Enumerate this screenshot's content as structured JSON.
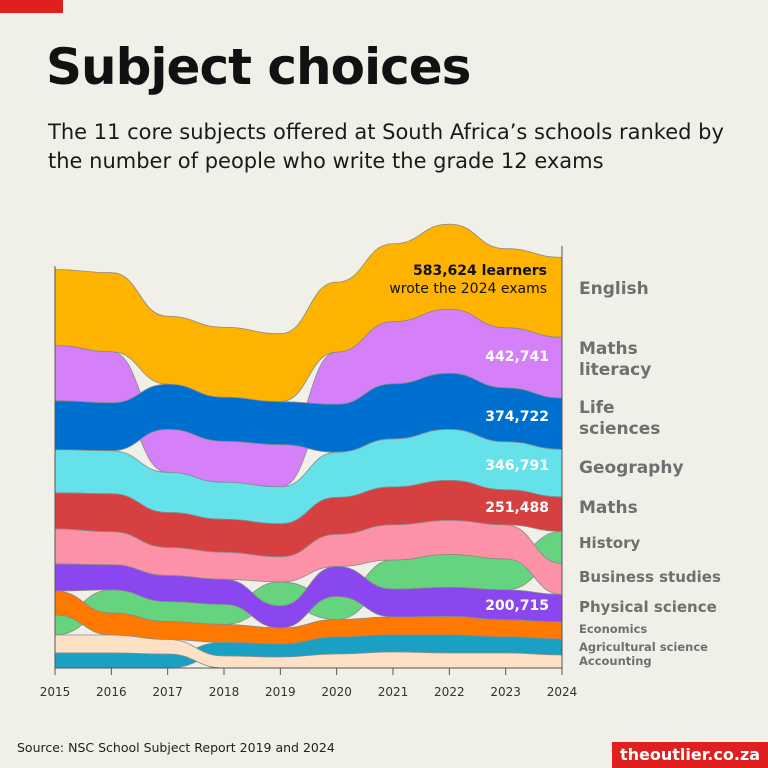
{
  "header": {
    "title": "Subject choices",
    "subtitle": "The 11 core subjects offered at South Africa’s schools ranked by the number of people who write the grade 12 exams"
  },
  "chart_data": {
    "type": "area",
    "subtype": "ranked stacked stream (bump) chart",
    "x": [
      2015,
      2016,
      2017,
      2018,
      2019,
      2020,
      2021,
      2022,
      2023,
      2024
    ],
    "tick_labels": [
      "2015",
      "2016",
      "2017",
      "2018",
      "2019",
      "2020",
      "2021",
      "2022",
      "2023",
      "2024"
    ],
    "grid": false,
    "legend": "right (direct labels)",
    "series": [
      {
        "name": "English",
        "color": "#fdb300",
        "values": [
          555000,
          577000,
          496000,
          511000,
          496000,
          511000,
          569000,
          621000,
          577000,
          583624
        ]
      },
      {
        "name": "Maths literacy",
        "color": "#d580f9",
        "values": [
          402000,
          372000,
          314000,
          299000,
          307000,
          380000,
          453000,
          467000,
          438000,
          442741
        ]
      },
      {
        "name": "Life sciences",
        "color": "#0070d0",
        "values": [
          358000,
          350000,
          329000,
          321000,
          314000,
          350000,
          402000,
          409000,
          394000,
          374722
        ]
      },
      {
        "name": "Geography",
        "color": "#65e1e9",
        "values": [
          314000,
          314000,
          292000,
          270000,
          270000,
          329000,
          350000,
          372000,
          350000,
          346791
        ]
      },
      {
        "name": "Maths",
        "color": "#d74040",
        "values": [
          263000,
          277000,
          256000,
          241000,
          241000,
          270000,
          277000,
          292000,
          256000,
          251488
        ]
      },
      {
        "name": "History",
        "color": "#66d47e",
        "values": [
          146000,
          168000,
          146000,
          146000,
          175000,
          168000,
          212000,
          241000,
          226000,
          234000
        ]
      },
      {
        "name": "Business studies",
        "color": "#fc91a8",
        "values": [
          256000,
          241000,
          204000,
          197000,
          183000,
          234000,
          256000,
          248000,
          248000,
          226000
        ]
      },
      {
        "name": "Physical science",
        "color": "#8a47ef",
        "values": [
          197000,
          183000,
          190000,
          183000,
          161000,
          219000,
          204000,
          212000,
          219000,
          200715
        ]
      },
      {
        "name": "Economics",
        "color": "#ff7800",
        "values": [
          175000,
          161000,
          131000,
          131000,
          117000,
          128000,
          131000,
          135000,
          124000,
          124000
        ]
      },
      {
        "name": "Agricultural science",
        "color": "#1aa0c2",
        "values": [
          110000,
          110000,
          102000,
          99000,
          95000,
          124000,
          124000,
          131000,
          117000,
          117000
        ]
      },
      {
        "name": "Accounting",
        "color": "#fde1c6",
        "values": [
          131000,
          131000,
          106000,
          88000,
          80000,
          102000,
          117000,
          110000,
          110000,
          95000
        ]
      }
    ],
    "annotations": {
      "english_value": "583,624 learners",
      "english_note": "wrote the 2024 exams",
      "maths_literacy": "442,741",
      "life_sciences": "374,722",
      "geography": "346,791",
      "maths": "251,488",
      "physical_science": "200,715"
    }
  },
  "labels": [
    "English",
    "Maths",
    "literacy",
    "Life",
    "sciences",
    "Geography",
    "Maths",
    "History",
    "Business studies",
    "Physical science",
    "Economics",
    "Agricultural science",
    "Accounting"
  ],
  "footer": {
    "source": "Source: NSC School Subject Report 2019 and 2024",
    "brand": "theoutlier.co.za"
  }
}
